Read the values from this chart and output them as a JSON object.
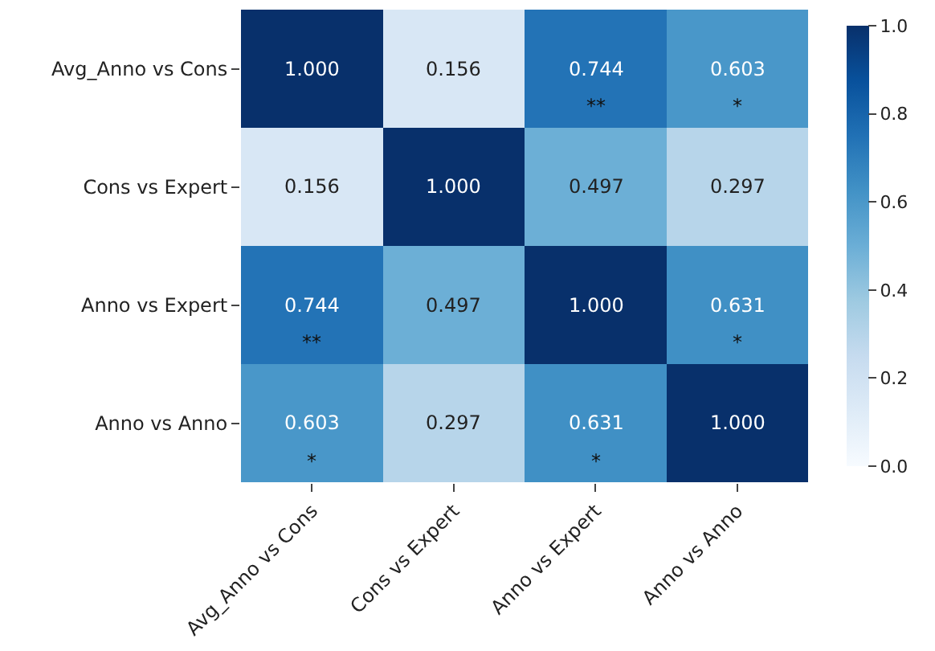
{
  "chart_data": {
    "type": "heatmap",
    "categories": [
      "Avg_Anno vs Cons",
      "Cons vs Expert",
      "Anno vs Expert",
      "Anno vs Anno"
    ],
    "y_categories": [
      "Avg_Anno vs Cons",
      "Cons vs Expert",
      "Anno vs Expert",
      "Anno vs Anno"
    ],
    "cells": [
      [
        1.0,
        0.156,
        0.744,
        0.603
      ],
      [
        0.156,
        1.0,
        0.497,
        0.297
      ],
      [
        0.744,
        0.497,
        1.0,
        0.631
      ],
      [
        0.603,
        0.297,
        0.631,
        1.0
      ]
    ],
    "cell_labels": [
      [
        "1.000",
        "0.156",
        "0.744\n**",
        "0.603\n*"
      ],
      [
        "0.156",
        "1.000",
        "0.497",
        "0.297"
      ],
      [
        "0.744\n**",
        "0.497",
        "1.000",
        "0.631\n*"
      ],
      [
        "0.603\n*",
        "0.297",
        "0.631\n*",
        "1.000"
      ]
    ],
    "clim": [
      0,
      1
    ],
    "cticks": [
      {
        "value": 0,
        "label": "0.0"
      },
      {
        "value": 0.2,
        "label": "0.2"
      },
      {
        "value": 0.4,
        "label": "0.4"
      },
      {
        "value": 0.6,
        "label": "0.6"
      },
      {
        "value": 0.8,
        "label": "0.8"
      },
      {
        "value": 1,
        "label": "1.0"
      }
    ]
  }
}
